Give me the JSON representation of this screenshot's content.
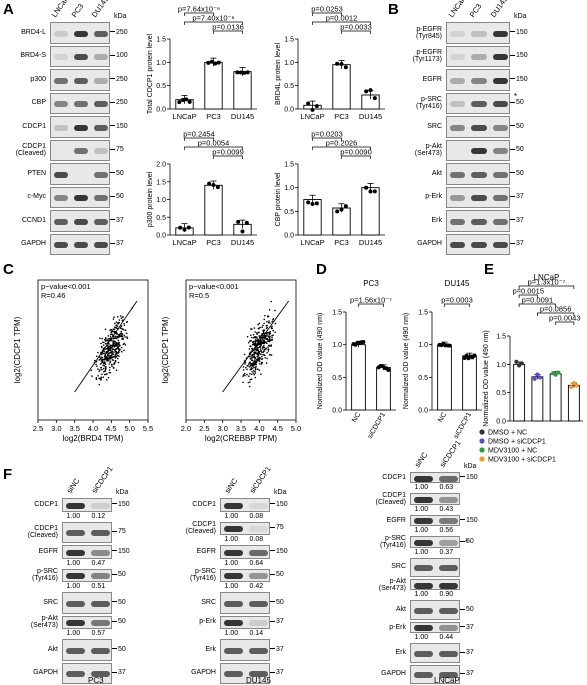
{
  "panels": {
    "A": {
      "label": "A",
      "blot_lanes": [
        "LNCaP",
        "PC3",
        "DU145"
      ],
      "kda_header": "kDa",
      "blot_rows": [
        {
          "name": "BRD4-L",
          "kda": "250"
        },
        {
          "name": "BRD4-S",
          "kda": "100"
        },
        {
          "name": "p300",
          "kda": "250"
        },
        {
          "name": "CBP",
          "kda": "250"
        },
        {
          "name": "CDCP1",
          "kda": "150"
        },
        {
          "name": "CDCP1\n(Cleaved)",
          "kda": "75"
        },
        {
          "name": "PTEN",
          "kda": "50"
        },
        {
          "name": "c-Myc",
          "kda": "50"
        },
        {
          "name": "CCND1",
          "kda": "37"
        },
        {
          "name": "GAPDH",
          "kda": "37"
        }
      ]
    },
    "B": {
      "label": "B",
      "blot_lanes": [
        "LNCaP",
        "PC3",
        "DU145"
      ],
      "kda_header": "kDa",
      "blot_rows": [
        {
          "name": "p-EGFR\n(Tyr845)",
          "kda": "150"
        },
        {
          "name": "p-EGFR\n(Tyr1173)",
          "kda": "150"
        },
        {
          "name": "EGFR",
          "kda": "150"
        },
        {
          "name": "p-SRC\n(Tyr416)",
          "kda": "50"
        },
        {
          "name": "SRC",
          "kda": "50"
        },
        {
          "name": "p-Akt\n(Ser473)",
          "kda": "50"
        },
        {
          "name": "Akt",
          "kda": "50"
        },
        {
          "name": "p-Erk",
          "kda": "37"
        },
        {
          "name": "Erk",
          "kda": "37"
        },
        {
          "name": "GAPDH",
          "kda": "37"
        }
      ],
      "asterisk": "*"
    },
    "C": {
      "label": "C"
    },
    "D": {
      "label": "D"
    },
    "E": {
      "label": "E"
    },
    "F": {
      "label": "F",
      "lanes": [
        "siNC",
        "siCDCP1"
      ],
      "kda_header": "kDa",
      "asterisk": "*",
      "pc3": {
        "title": "PC3",
        "rows": [
          {
            "name": "CDCP1",
            "kda": "150",
            "q": [
              "1.00",
              "0.12"
            ]
          },
          {
            "name": "CDCP1\n(Cleaved)",
            "kda": "75",
            "q": []
          },
          {
            "name": "EGFR",
            "kda": "150",
            "q": [
              "1.00",
              "0.47"
            ]
          },
          {
            "name": "p-SRC\n(Tyr416)",
            "kda": "50",
            "q": [
              "1.00",
              "0.51"
            ]
          },
          {
            "name": "SRC",
            "kda": "50",
            "q": []
          },
          {
            "name": "p-Akt\n(Ser473)",
            "kda": "50",
            "q": [
              "1.00",
              "0.57"
            ]
          },
          {
            "name": "Akt",
            "kda": "50",
            "q": []
          },
          {
            "name": "GAPDH",
            "kda": "37",
            "q": []
          }
        ]
      },
      "du145": {
        "title": "DU145",
        "rows": [
          {
            "name": "CDCP1",
            "kda": "150",
            "q": [
              "1.00",
              "0.08"
            ]
          },
          {
            "name": "CDCP1\n(Cleaved)",
            "kda": "75",
            "q": [
              "1.00",
              "0.08"
            ]
          },
          {
            "name": "EGFR",
            "kda": "150",
            "q": [
              "1.00",
              "0.64"
            ]
          },
          {
            "name": "p-SRC\n(Tyr416)",
            "kda": "50",
            "q": [
              "1.00",
              "0.42"
            ]
          },
          {
            "name": "SRC",
            "kda": "50",
            "q": []
          },
          {
            "name": "p-Erk",
            "kda": "37",
            "q": [
              "1.00",
              "0.14"
            ]
          },
          {
            "name": "Erk",
            "kda": "37",
            "q": []
          },
          {
            "name": "GAPDH",
            "kda": "37",
            "q": []
          }
        ]
      },
      "lncap": {
        "title": "LNCaP",
        "rows": [
          {
            "name": "CDCP1",
            "kda": "150",
            "q": [
              "1.00",
              "0.63"
            ]
          },
          {
            "name": "CDCP1\n(Cleaved)",
            "kda": "",
            "q": [
              "1.00",
              "0.43"
            ]
          },
          {
            "name": "EGFR",
            "kda": "150",
            "q": [
              "1.00",
              "0.56"
            ]
          },
          {
            "name": "p-SRC\n(Tyr416)",
            "kda": "50",
            "q": [
              "1.00",
              "0.37"
            ]
          },
          {
            "name": "SRC",
            "kda": "",
            "q": []
          },
          {
            "name": "p-Akt\n(Ser473)",
            "kda": "",
            "q": [
              "1.00",
              "0.90"
            ]
          },
          {
            "name": "Akt",
            "kda": "50",
            "q": []
          },
          {
            "name": "p-Erk",
            "kda": "37",
            "q": [
              "1.00",
              "0.44"
            ]
          },
          {
            "name": "Erk",
            "kda": "37",
            "q": []
          },
          {
            "name": "GAPDH",
            "kda": "37",
            "q": []
          }
        ]
      }
    }
  },
  "chart_data": [
    {
      "type": "bar",
      "panel": "A",
      "title": "",
      "ylabel": "Total CDCP1 protein level",
      "categories": [
        "LNCaP",
        "PC3",
        "DU145"
      ],
      "values": [
        0.2,
        1.0,
        0.8
      ],
      "ylim": [
        0,
        1.5
      ],
      "yticks": [
        "0.0",
        "0.5",
        "1.0",
        "1.5"
      ],
      "pvalues": [
        "p=7.64x10⁻⁶",
        "p=7.40x10⁻⁶",
        "p=0.0136"
      ]
    },
    {
      "type": "bar",
      "panel": "A",
      "title": "",
      "ylabel": "BRD4L protein level",
      "categories": [
        "LNCaP",
        "PC3",
        "DU145"
      ],
      "values": [
        0.08,
        0.95,
        0.3
      ],
      "ylim": [
        0,
        1.5
      ],
      "yticks": [
        "0.0",
        "0.5",
        "1.0",
        "1.5"
      ],
      "pvalues": [
        "p=0.0253",
        "p=0.0012",
        "p=0.0033"
      ]
    },
    {
      "type": "bar",
      "panel": "A",
      "title": "",
      "ylabel": "p300 protein level",
      "categories": [
        "LNCaP",
        "PC3",
        "DU145"
      ],
      "values": [
        0.2,
        1.4,
        0.3
      ],
      "ylim": [
        0,
        2.0
      ],
      "yticks": [
        "0.0",
        "0.5",
        "1.0",
        "1.5",
        "2.0"
      ],
      "pvalues": [
        "p=0.2454",
        "p=0.0054",
        "p=0.0099"
      ]
    },
    {
      "type": "bar",
      "panel": "A",
      "title": "",
      "ylabel": "CBP protein level",
      "categories": [
        "LNCaP",
        "PC3",
        "DU145"
      ],
      "values": [
        0.75,
        0.57,
        1.0
      ],
      "ylim": [
        0,
        1.5
      ],
      "yticks": [
        "0.0",
        "0.5",
        "1.0",
        "1.5"
      ],
      "pvalues": [
        "p=0.0203",
        "p=0.2026",
        "p=0.0090"
      ]
    },
    {
      "type": "scatter",
      "panel": "C",
      "xlabel": "log2(BRD4 TPM)",
      "ylabel": "log2(CDCP1 TPM)",
      "xlim": [
        2.5,
        5.5
      ],
      "ylim": [
        0,
        10
      ],
      "xticks": [
        "2.5",
        "3.0",
        "3.5",
        "4.0",
        "4.5",
        "5.0",
        "5.5"
      ],
      "annotation": [
        "p−value<0.001",
        "R=0.46"
      ],
      "fit": {
        "x": [
          3.5,
          5.2
        ],
        "y": [
          2.0,
          8.5
        ]
      }
    },
    {
      "type": "scatter",
      "panel": "C",
      "xlabel": "log2(CREBBP TPM)",
      "ylabel": "log2(CDCP1 TPM)",
      "xlim": [
        2.0,
        5.0
      ],
      "ylim": [
        0,
        10
      ],
      "xticks": [
        "2.0",
        "2.5",
        "3.0",
        "3.5",
        "4.0",
        "4.5",
        "5.0"
      ],
      "annotation": [
        "p−value<0.001",
        "R=0.5"
      ],
      "fit": {
        "x": [
          3.0,
          4.8
        ],
        "y": [
          2.0,
          8.5
        ]
      }
    },
    {
      "type": "bar",
      "panel": "D",
      "title": "PC3",
      "ylabel": "Normalized OD value (490 nm)",
      "categories": [
        "NC",
        "siCDCP1"
      ],
      "values": [
        1.0,
        0.65
      ],
      "ylim": [
        0,
        1.5
      ],
      "yticks": [
        "0.0",
        "0.5",
        "1.0",
        "1.5"
      ],
      "pvalues": [
        "p=1.56x10⁻⁷"
      ]
    },
    {
      "type": "bar",
      "panel": "D",
      "title": "DU145",
      "ylabel": "Normalized OD value (490 nm)",
      "categories": [
        "NC",
        "siCDCP1"
      ],
      "values": [
        1.0,
        0.83
      ],
      "ylim": [
        0,
        1.5
      ],
      "yticks": [
        "0.0",
        "0.5",
        "1.0",
        "1.5"
      ],
      "pvalues": [
        "p=0.0003"
      ]
    },
    {
      "type": "bar",
      "panel": "E",
      "title": "LNCaP",
      "ylabel": "Normalized OD value (490 nm)",
      "categories": [
        "DMSO + NC",
        "DMSO + siCDCP1",
        "MDV3100 + NC",
        "MDV3100 + siCDCP1"
      ],
      "values": [
        1.0,
        0.78,
        0.83,
        0.63
      ],
      "ylim": [
        0,
        1.5
      ],
      "yticks": [
        "0.0",
        "0.5",
        "1.0",
        "1.5"
      ],
      "colors": [
        "#333333",
        "#5a4fcf",
        "#2e9e3f",
        "#f39c12"
      ],
      "pvalues": [
        "p=1.3x10⁻⁷",
        "p=0.0015",
        "p=0.0091",
        "p=0.0856",
        "p=0.0043"
      ]
    }
  ]
}
